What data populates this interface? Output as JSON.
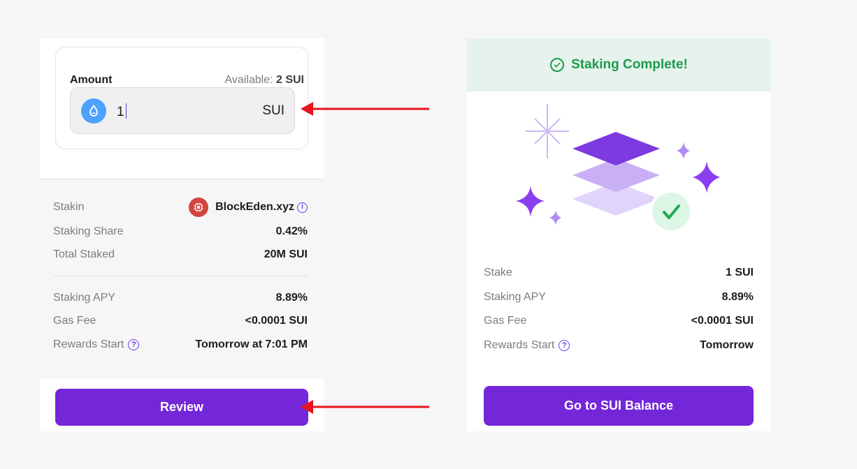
{
  "left": {
    "amount_label": "Amount",
    "available_prefix": "Available:",
    "available_value": "2 SUI",
    "amount_value": "1",
    "amount_unit": "SUI",
    "details": [
      {
        "label": "Stakin",
        "value": "BlockEden.xyz"
      },
      {
        "label": "Staking Share",
        "value": "0.42%"
      },
      {
        "label": "Total Staked",
        "value": "20M SUI"
      },
      {
        "label": "Staking APY",
        "value": "8.89%"
      },
      {
        "label": "Gas Fee",
        "value": "<0.0001 SUI"
      },
      {
        "label": "Rewards Start",
        "value": "Tomorrow at 7:01 PM"
      }
    ],
    "review_label": "Review"
  },
  "right": {
    "banner_text": "Staking Complete!",
    "details": [
      {
        "label": "Stake",
        "value": "1 SUI"
      },
      {
        "label": "Staking APY",
        "value": "8.89%"
      },
      {
        "label": "Gas Fee",
        "value": "<0.0001 SUI"
      },
      {
        "label": "Rewards Start",
        "value": "Tomorrow"
      }
    ],
    "button_label": "Go to SUI Balance"
  },
  "icons": {
    "help": "?",
    "info": "i"
  },
  "colors": {
    "accent": "#7427d9",
    "success": "#1f9a4a",
    "success_bg": "#e6f3ec",
    "arrow": "#e8131b",
    "sui_blue": "#4da2ff",
    "validator_red": "#d2453f"
  }
}
